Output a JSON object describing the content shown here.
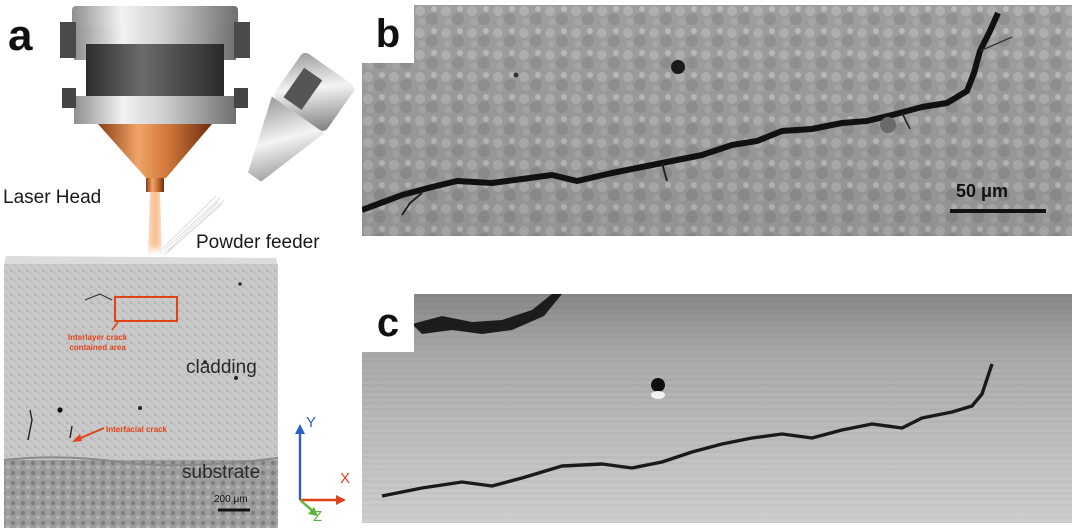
{
  "panels": {
    "a": {
      "letter": "a",
      "laser_head_label": "Laser Head",
      "powder_feeder_label": "Powder feeder",
      "interlayer_label_line1": "Interlayer crack",
      "interlayer_label_line2": "contained area",
      "interfacial_label": "Interfacial crack",
      "cladding_label": "cladding",
      "substrate_label": "substrate",
      "scale_bar": "200 μm",
      "axes": {
        "y": "Y",
        "x": "X",
        "z": "Z"
      }
    },
    "b": {
      "letter": "b",
      "scale_bar": "50 μm"
    },
    "c": {
      "letter": "c"
    }
  },
  "colors": {
    "annotation": "#e0431a",
    "axis_y": "#2a5fc4",
    "axis_x": "#e0431a",
    "axis_z": "#5cb53a"
  }
}
